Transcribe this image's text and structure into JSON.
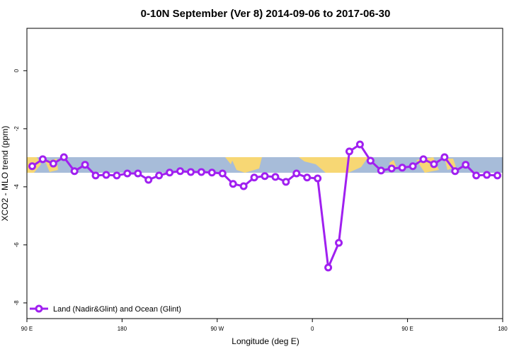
{
  "chart_data": {
    "type": "line",
    "title": "0-10N September (Ver 8)   2014-09-06 to 2017-06-30",
    "x_label": "Longitude (deg E)",
    "y_label": "XCO2 - MLO trend (ppm)",
    "x": [
      -265,
      -255,
      -245,
      -235,
      -225,
      -215,
      -205,
      -195,
      -185,
      -175,
      -165,
      -155,
      -145,
      -135,
      -125,
      -115,
      -105,
      -95,
      -85,
      -75,
      -65,
      -55,
      -45,
      -35,
      -25,
      -15,
      -5,
      5,
      15,
      25,
      35,
      45,
      55,
      65,
      75,
      85,
      95,
      105,
      115,
      125,
      135,
      145,
      155,
      165,
      175
    ],
    "series": [
      {
        "name": "Land (Nadir&Glint) and Ocean (Glint)",
        "color": "#a020f0",
        "values": [
          -3.29,
          -3.05,
          -3.2,
          -2.98,
          -3.46,
          -3.24,
          -3.61,
          -3.59,
          -3.61,
          -3.54,
          -3.54,
          -3.76,
          -3.61,
          -3.51,
          -3.46,
          -3.49,
          -3.49,
          -3.51,
          -3.54,
          -3.9,
          -3.98,
          -3.68,
          -3.63,
          -3.66,
          -3.83,
          -3.54,
          -3.68,
          -3.71,
          -6.78,
          -5.93,
          -2.78,
          -2.54,
          -3.1,
          -3.44,
          -3.37,
          -3.34,
          -3.29,
          -3.05,
          -3.22,
          -2.98,
          -3.46,
          -3.24,
          -3.61,
          -3.59,
          -3.61
        ]
      }
    ],
    "xlim": [
      -270,
      180
    ],
    "xticks": [
      {
        "value": -270,
        "label": "90 E"
      },
      {
        "value": -180,
        "label": "180"
      },
      {
        "value": -90,
        "label": "90 W"
      },
      0,
      {
        "value": 90,
        "label": "90 E"
      },
      180
    ],
    "ylim": [
      -8.54,
      1.46
    ],
    "yticks": [
      0,
      -2,
      -4,
      -6,
      -8
    ],
    "legend": "bottom-left"
  }
}
